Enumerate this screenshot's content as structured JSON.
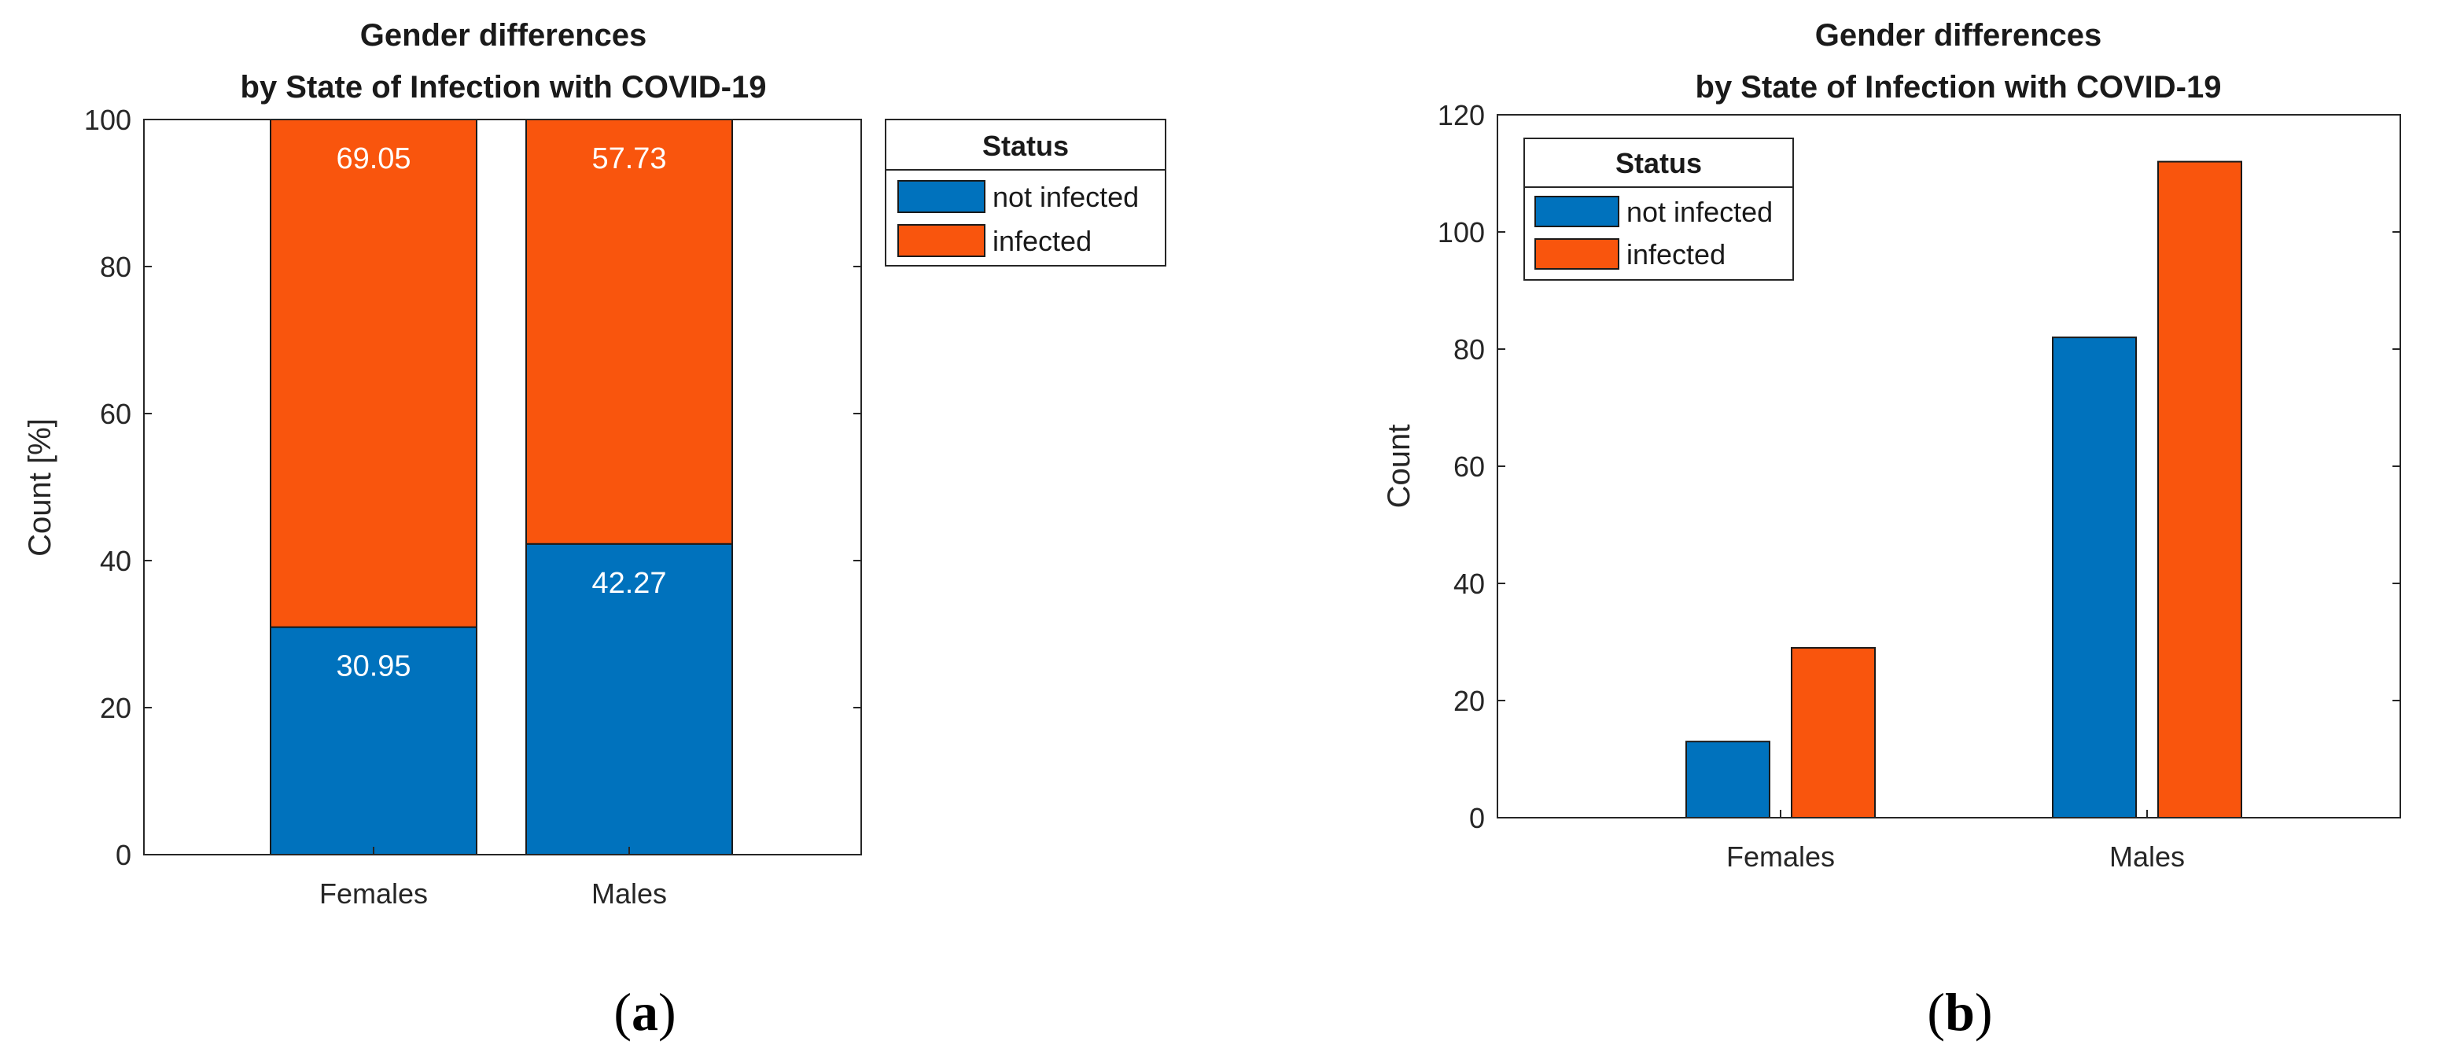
{
  "chart_data": [
    {
      "panel": "(a)",
      "panel_paren_open": "(",
      "panel_letter": "a",
      "panel_paren_close": ")",
      "type": "bar",
      "stacked": true,
      "title_line1": "Gender differences",
      "title_line2": "by State of Infection with COVID-19",
      "xlabel": "",
      "ylabel": "Count [%]",
      "categories": [
        "Females",
        "Males"
      ],
      "series": [
        {
          "name": "not infected",
          "color": "#0072BD",
          "values": [
            30.95,
            42.27
          ],
          "labels": [
            "30.95",
            "42.27"
          ]
        },
        {
          "name": "infected",
          "color": "#F9550D",
          "values": [
            69.05,
            57.73
          ],
          "labels": [
            "69.05",
            "57.73"
          ]
        }
      ],
      "ylim": [
        0,
        100
      ],
      "yticks": [
        "0",
        "20",
        "40",
        "60",
        "80",
        "100"
      ],
      "legend": {
        "title": "Status",
        "placement": "outside-top-right",
        "entries": [
          "not infected",
          "infected"
        ]
      }
    },
    {
      "panel": "(b)",
      "panel_paren_open": "(",
      "panel_letter": "b",
      "panel_paren_close": ")",
      "type": "bar",
      "stacked": false,
      "title_line1": "Gender differences",
      "title_line2": "by State of Infection with COVID-19",
      "xlabel": "",
      "ylabel": "Count",
      "categories": [
        "Females",
        "Males"
      ],
      "series": [
        {
          "name": "not infected",
          "color": "#0072BD",
          "values": [
            13,
            82
          ]
        },
        {
          "name": "infected",
          "color": "#F9550D",
          "values": [
            29,
            112
          ]
        }
      ],
      "ylim": [
        0,
        120
      ],
      "yticks": [
        "0",
        "20",
        "40",
        "60",
        "80",
        "100",
        "120"
      ],
      "legend": {
        "title": "Status",
        "placement": "top-left",
        "entries": [
          "not infected",
          "infected"
        ]
      }
    }
  ]
}
